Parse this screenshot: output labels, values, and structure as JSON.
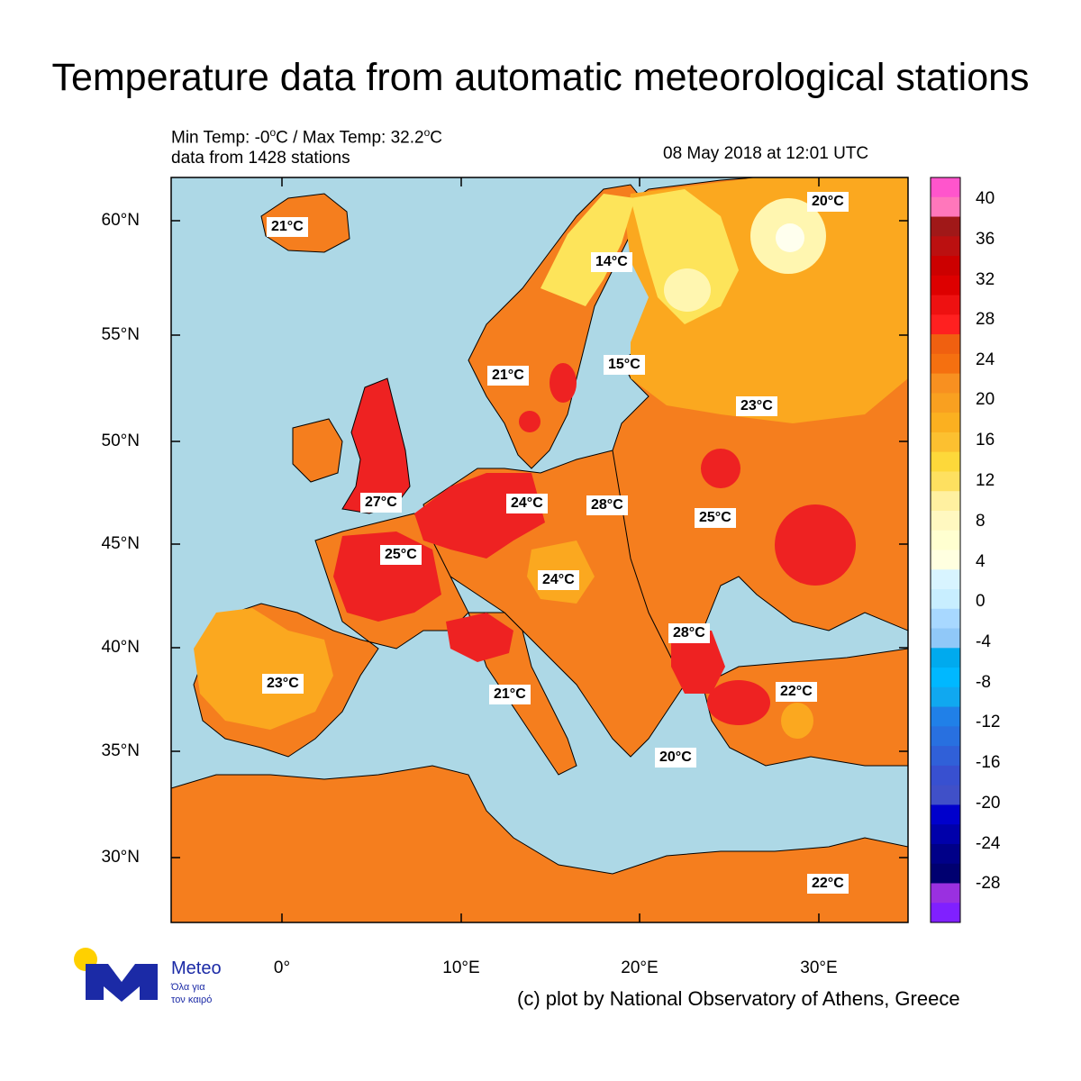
{
  "title": "Temperature data from automatic meteorological stations",
  "stats": {
    "min_label": "Min Temp:",
    "min_value": "-0",
    "max_label": "Max Temp:",
    "max_value": "32.2",
    "unit": "C",
    "stations_text": "data from 1428 stations"
  },
  "timestamp": "08 May 2018 at 12:01 UTC",
  "credit": "(c) plot by National Observatory of Athens, Greece",
  "logo": {
    "name": "Meteo",
    "tagline_1": "Όλα για",
    "tagline_2": "τον καιρό"
  },
  "axes": {
    "lat_labels": [
      "60°N",
      "55°N",
      "50°N",
      "45°N",
      "40°N",
      "35°N",
      "30°N"
    ],
    "lon_labels": [
      "0°",
      "10°E",
      "20°E",
      "30°E"
    ]
  },
  "colorbar": {
    "labels": [
      "40",
      "36",
      "32",
      "28",
      "24",
      "20",
      "16",
      "12",
      "8",
      "4",
      "0",
      "-4",
      "-8",
      "-12",
      "-16",
      "-20",
      "-24",
      "-28"
    ],
    "colors_top_to_bottom": [
      "#ff55cc",
      "#ff77bb",
      "#a01818",
      "#bb1010",
      "#cc0000",
      "#dd0000",
      "#ee1111",
      "#ff2020",
      "#f06010",
      "#f57010",
      "#f89020",
      "#f9a020",
      "#fbb020",
      "#fcc030",
      "#fdd83a",
      "#fee060",
      "#fff0a0",
      "#fff8c0",
      "#ffffd0",
      "#ffffe0",
      "#d8f4ff",
      "#c8eeff",
      "#a8d8ff",
      "#90c8f8",
      "#00aaee",
      "#00b8ff",
      "#10a8f0",
      "#2080e8",
      "#2870e0",
      "#3060d8",
      "#3850d0",
      "#4050c8",
      "#0000cc",
      "#0000aa",
      "#000088",
      "#000070",
      "#9a30e0",
      "#8020ff"
    ]
  },
  "map": {
    "colors": {
      "sea": "#add8e6",
      "land_base": "#f57e1e",
      "warm": "#ee2222",
      "cool": "#fba81f",
      "cold": "#fde45a",
      "coldest": "#fff6b0"
    },
    "labels": [
      {
        "text": "21°C"
      },
      {
        "text": "14°C"
      },
      {
        "text": "20°C"
      },
      {
        "text": "21°C"
      },
      {
        "text": "15°C"
      },
      {
        "text": "23°C"
      },
      {
        "text": "27°C"
      },
      {
        "text": "25°C"
      },
      {
        "text": "24°C"
      },
      {
        "text": "28°C"
      },
      {
        "text": "25°C"
      },
      {
        "text": "24°C"
      },
      {
        "text": "28°C"
      },
      {
        "text": "23°C"
      },
      {
        "text": "21°C"
      },
      {
        "text": "22°C"
      },
      {
        "text": "20°C"
      },
      {
        "text": "22°C"
      }
    ]
  }
}
